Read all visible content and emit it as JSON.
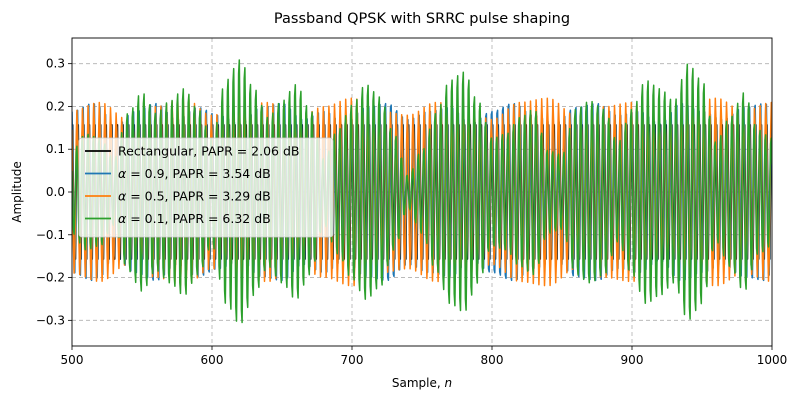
{
  "chart_data": {
    "type": "line",
    "title": "Passband QPSK with SRRC pulse shaping",
    "xlabel": "Sample, n",
    "ylabel": "Amplitude",
    "xlim": [
      500,
      1000
    ],
    "ylim": [
      -0.36,
      0.36
    ],
    "xticks": [
      500,
      600,
      700,
      800,
      900,
      1000
    ],
    "yticks": [
      -0.3,
      -0.2,
      -0.1,
      0.0,
      0.1,
      0.2,
      0.3
    ],
    "xtick_labels": [
      "500",
      "600",
      "700",
      "800",
      "900",
      "1000"
    ],
    "ytick_labels": [
      "−0.3",
      "−0.2",
      "−0.1",
      "0.0",
      "0.1",
      "0.2",
      "0.3"
    ],
    "grid": true,
    "legend_position": "center-left",
    "carrier_period_samples": 4,
    "series": [
      {
        "name": "Rectangular, PAPR = 2.06 dB",
        "prefix": "",
        "suffix": "Rectangular, PAPR = 2.06 dB",
        "color": "#000000",
        "envelope_x": [
          500,
          650,
          800,
          1000
        ],
        "envelope_y": [
          0.157,
          0.157,
          0.157,
          0.157
        ]
      },
      {
        "name": "α = 0.9, PAPR = 3.54 dB",
        "prefix": "α",
        "suffix": " = 0.9, PAPR = 3.54 dB",
        "color": "#1f77b4",
        "envelope_x": [
          500,
          515,
          520,
          530,
          545,
          560,
          575,
          590,
          605,
          620,
          635,
          650,
          665,
          680,
          695,
          710,
          725,
          740,
          755,
          770,
          785,
          800,
          815,
          830,
          845,
          860,
          875,
          890,
          905,
          920,
          935,
          950,
          965,
          980,
          995,
          1000
        ],
        "envelope_y": [
          0.2,
          0.22,
          0.21,
          0.16,
          0.2,
          0.22,
          0.18,
          0.21,
          0.19,
          0.17,
          0.21,
          0.22,
          0.18,
          0.2,
          0.17,
          0.21,
          0.22,
          0.18,
          0.2,
          0.21,
          0.17,
          0.2,
          0.22,
          0.19,
          0.17,
          0.21,
          0.22,
          0.19,
          0.2,
          0.17,
          0.22,
          0.2,
          0.18,
          0.21,
          0.22,
          0.2
        ]
      },
      {
        "name": "α = 0.5, PAPR = 3.29 dB",
        "prefix": "α",
        "suffix": " = 0.5, PAPR = 3.29 dB",
        "color": "#ff7f0e",
        "envelope_x": [
          500,
          520,
          540,
          560,
          580,
          600,
          620,
          640,
          660,
          680,
          700,
          720,
          740,
          760,
          780,
          800,
          820,
          840,
          860,
          880,
          900,
          920,
          940,
          960,
          980,
          1000
        ],
        "envelope_y": [
          0.19,
          0.21,
          0.17,
          0.2,
          0.22,
          0.18,
          0.2,
          0.21,
          0.17,
          0.2,
          0.22,
          0.19,
          0.18,
          0.21,
          0.2,
          0.17,
          0.21,
          0.22,
          0.18,
          0.2,
          0.21,
          0.17,
          0.2,
          0.22,
          0.19,
          0.21
        ]
      },
      {
        "name": "α = 0.1, PAPR = 6.32 dB",
        "prefix": "α",
        "suffix": " = 0.1, PAPR = 6.32 dB",
        "color": "#2ca02c",
        "envelope_x": [
          500,
          510,
          520,
          530,
          540,
          550,
          560,
          570,
          580,
          590,
          600,
          610,
          620,
          630,
          640,
          650,
          660,
          670,
          680,
          690,
          700,
          710,
          720,
          730,
          740,
          750,
          760,
          770,
          780,
          790,
          800,
          810,
          820,
          830,
          840,
          850,
          860,
          870,
          880,
          890,
          900,
          910,
          920,
          930,
          940,
          950,
          960,
          970,
          980,
          990,
          1000
        ],
        "envelope_y": [
          0.1,
          0.14,
          0.13,
          0.08,
          0.19,
          0.24,
          0.19,
          0.22,
          0.25,
          0.2,
          0.13,
          0.27,
          0.32,
          0.25,
          0.18,
          0.22,
          0.26,
          0.2,
          0.08,
          0.15,
          0.21,
          0.26,
          0.23,
          0.14,
          0.04,
          0.1,
          0.19,
          0.27,
          0.29,
          0.22,
          0.13,
          0.14,
          0.18,
          0.2,
          0.1,
          0.09,
          0.2,
          0.22,
          0.2,
          0.12,
          0.2,
          0.27,
          0.25,
          0.22,
          0.31,
          0.27,
          0.12,
          0.18,
          0.24,
          0.15,
          0.13
        ]
      }
    ]
  }
}
